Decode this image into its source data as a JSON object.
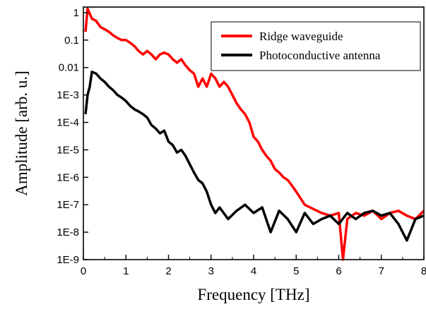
{
  "chart_data": {
    "type": "line",
    "title": "",
    "xlabel": "Frequency [THz]",
    "ylabel": "Amplitude [arb. u.]",
    "xlim": [
      0,
      8
    ],
    "ylim": [
      1e-09,
      1.6
    ],
    "yscale": "log",
    "x_ticks": [
      "0",
      "1",
      "2",
      "3",
      "4",
      "5",
      "6",
      "7",
      "8"
    ],
    "y_ticks": [
      "1",
      "0.1",
      "0.01",
      "1E-3",
      "1E-4",
      "1E-5",
      "1E-6",
      "1E-7",
      "1E-8",
      "1E-9"
    ],
    "legend_position": "top-right",
    "series": [
      {
        "name": "Ridge waveguide",
        "color": "#ff0000",
        "x": [
          0.05,
          0.1,
          0.2,
          0.3,
          0.4,
          0.5,
          0.6,
          0.7,
          0.8,
          0.9,
          1.0,
          1.1,
          1.2,
          1.3,
          1.4,
          1.5,
          1.6,
          1.7,
          1.8,
          1.9,
          2.0,
          2.1,
          2.2,
          2.3,
          2.4,
          2.5,
          2.6,
          2.7,
          2.8,
          2.9,
          3.0,
          3.1,
          3.2,
          3.3,
          3.4,
          3.5,
          3.6,
          3.7,
          3.8,
          3.9,
          4.0,
          4.1,
          4.2,
          4.3,
          4.4,
          4.5,
          4.6,
          4.7,
          4.8,
          4.9,
          5.0,
          5.2,
          5.4,
          5.6,
          5.8,
          6.0,
          6.1,
          6.2,
          6.4,
          6.6,
          6.8,
          7.0,
          7.2,
          7.4,
          7.6,
          7.8,
          8.0
        ],
        "y": [
          0.2,
          1.4,
          0.6,
          0.5,
          0.3,
          0.25,
          0.2,
          0.15,
          0.12,
          0.1,
          0.1,
          0.08,
          0.06,
          0.04,
          0.03,
          0.04,
          0.03,
          0.02,
          0.03,
          0.035,
          0.03,
          0.02,
          0.015,
          0.02,
          0.012,
          0.008,
          0.006,
          0.002,
          0.004,
          0.002,
          0.006,
          0.004,
          0.002,
          0.003,
          0.002,
          0.001,
          0.0005,
          0.0003,
          0.0002,
          0.0001,
          3e-05,
          2e-05,
          1e-05,
          6e-06,
          4e-06,
          2e-06,
          1.5e-06,
          1e-06,
          8e-07,
          5e-07,
          3e-07,
          1e-07,
          7e-08,
          5e-08,
          4e-08,
          5e-08,
          1e-09,
          3e-08,
          5e-08,
          4e-08,
          6e-08,
          3e-08,
          5e-08,
          6e-08,
          4e-08,
          3e-08,
          6e-08
        ]
      },
      {
        "name": "Photoconductive antenna",
        "color": "#000000",
        "x": [
          0.05,
          0.1,
          0.15,
          0.2,
          0.3,
          0.4,
          0.5,
          0.6,
          0.7,
          0.8,
          0.9,
          1.0,
          1.1,
          1.2,
          1.3,
          1.4,
          1.5,
          1.6,
          1.7,
          1.8,
          1.9,
          2.0,
          2.1,
          2.2,
          2.3,
          2.4,
          2.5,
          2.6,
          2.7,
          2.8,
          2.9,
          3.0,
          3.1,
          3.2,
          3.4,
          3.6,
          3.8,
          4.0,
          4.2,
          4.4,
          4.6,
          4.8,
          5.0,
          5.2,
          5.4,
          5.6,
          5.8,
          6.0,
          6.2,
          6.4,
          6.6,
          6.8,
          7.0,
          7.2,
          7.4,
          7.6,
          7.8,
          8.0
        ],
        "y": [
          0.0002,
          0.001,
          0.002,
          0.007,
          0.006,
          0.004,
          0.003,
          0.002,
          0.0015,
          0.001,
          0.0008,
          0.0006,
          0.0004,
          0.0003,
          0.00025,
          0.0002,
          0.00015,
          8e-05,
          6e-05,
          4e-05,
          5e-05,
          2e-05,
          1.5e-05,
          8e-06,
          1e-05,
          6e-06,
          3e-06,
          1.5e-06,
          8e-07,
          6e-07,
          3e-07,
          1e-07,
          5e-08,
          8e-08,
          3e-08,
          6e-08,
          1e-07,
          5e-08,
          8e-08,
          1e-08,
          6e-08,
          3e-08,
          1e-08,
          5e-08,
          2e-08,
          3e-08,
          4e-08,
          2e-08,
          5e-08,
          3e-08,
          5e-08,
          6e-08,
          4e-08,
          5e-08,
          2e-08,
          5e-09,
          3e-08,
          4e-08
        ]
      }
    ]
  }
}
